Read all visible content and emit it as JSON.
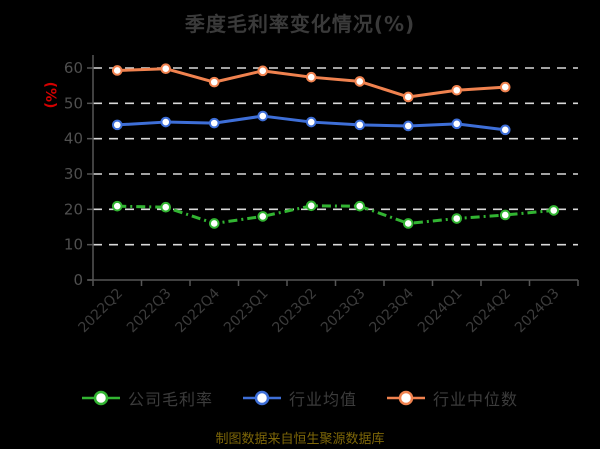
{
  "title": "季度毛利率变化情况(%)",
  "footer": "制图数据来自恒生聚源数据库",
  "colors": {
    "background": "#000000",
    "title_text": "#3a3a3a",
    "axis_line": "#565656",
    "grid_line": "#d9d9d9",
    "y_tick_text": "#4f4f4f",
    "x_tick_text": "#3c3c3c",
    "unit_label": "#d40000",
    "legend_text": "#3c3c3c",
    "footer_text": "#7d6608",
    "company_green": "#32b432",
    "industry_blue": "#3e6fd8",
    "median_orange": "#f0824f",
    "marker_fill": "#ffffff"
  },
  "chart_data": {
    "type": "line",
    "title": "季度毛利率变化情况(%)",
    "categories": [
      "2022Q2",
      "2022Q3",
      "2022Q4",
      "2023Q1",
      "2023Q2",
      "2023Q3",
      "2023Q4",
      "2024Q1",
      "2024Q2",
      "2024Q3"
    ],
    "series": [
      {
        "name": "公司毛利率",
        "color": "#32b432",
        "line_style": "dash-dot",
        "marker": "circle",
        "values": [
          20.9,
          20.6,
          16.0,
          18.0,
          21.0,
          20.9,
          16.0,
          17.4,
          18.4,
          19.7
        ]
      },
      {
        "name": "行业均值",
        "color": "#3e6fd8",
        "line_style": "solid",
        "marker": "circle",
        "values": [
          43.9,
          44.7,
          44.4,
          46.4,
          44.7,
          43.9,
          43.6,
          44.2,
          42.5,
          null
        ]
      },
      {
        "name": "行业中位数",
        "color": "#f0824f",
        "line_style": "solid",
        "marker": "circle",
        "values": [
          59.3,
          59.8,
          56.0,
          59.2,
          57.4,
          56.2,
          51.8,
          53.7,
          54.6,
          null
        ]
      }
    ],
    "xlabel": "",
    "ylabel": "(%)",
    "ylim": [
      0,
      60
    ],
    "yticks": [
      0,
      10,
      20,
      30,
      40,
      50,
      60
    ],
    "grid": "horizontal-dashed",
    "x_label_rotation": -45,
    "legend_position": "bottom"
  }
}
